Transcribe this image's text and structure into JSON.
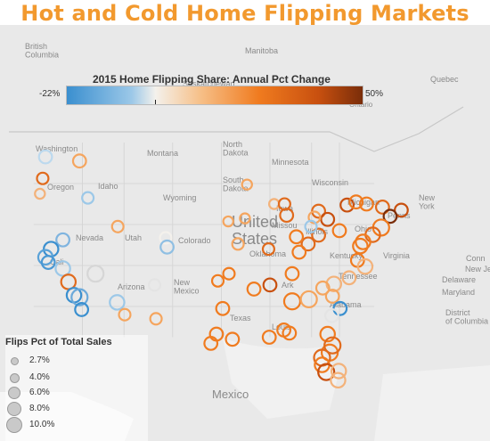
{
  "title": "Hot and Cold Home Flipping Markets",
  "legend": {
    "title": "2015 Home Flipping Share: Annual Pct Change",
    "min_label": "-22%",
    "max_label": "50%",
    "colors": [
      "#3a8fcf",
      "#9cc8e8",
      "#f4f1ec",
      "#f6c089",
      "#f07b1f",
      "#c8500f",
      "#7a2d0a"
    ]
  },
  "size_legend": {
    "title": "Flips Pct of Total Sales",
    "items": [
      "2.7%",
      "4.0%",
      "6.0%",
      "8.0%",
      "10.0%"
    ]
  },
  "map_labels": {
    "british_columbia": "British\nColumbia",
    "manitoba": "Manitoba",
    "saskatchewan": "Saskatchewan",
    "quebec": "Quebec",
    "ontario": "Ontario",
    "washington": "Washington",
    "montana": "Montana",
    "north_dakota": "North\nDakota",
    "minnesota": "Minnesota",
    "oregon": "Oregon",
    "idaho": "Idaho",
    "south_dakota": "South\nDakota",
    "wisconsin": "Wisconsin",
    "new_york": "New\nYork",
    "wyoming": "Wyoming",
    "iowa": "Iowa",
    "michigan": "Michigan",
    "united_states": "United\nStates",
    "nevada": "Nevada",
    "utah": "Utah",
    "colorado": "Colorado",
    "illinois": "Illinois",
    "ohio": "Ohio",
    "pennsylvania": "Penns",
    "missouri": "Missou",
    "kentucky": "Kentucky",
    "virginia": "Virginia",
    "oklahoma": "Oklahoma",
    "arizona": "Arizona",
    "new_mexico": "New\nMexico",
    "arkansas": "Ark",
    "tennessee": "Tennessee",
    "alabama": "Alabama",
    "texas": "Texas",
    "louisiana": "Louis",
    "connecticut": "Conn",
    "new_jersey": "New Je",
    "delaware": "Delaware",
    "maryland": "Maryland",
    "district_of_columbia": "District\nof Columbia",
    "mexico": "Mexico",
    "california": "Cali"
  },
  "markets": [
    {
      "lat": 47.6,
      "lon": -122.3,
      "size": 6.0,
      "color": "#bcd9ee"
    },
    {
      "lat": 47.2,
      "lon": -117.4,
      "size": 6.0,
      "color": "#f5a55e"
    },
    {
      "lat": 45.5,
      "lon": -122.7,
      "size": 5.0,
      "color": "#e06a1c"
    },
    {
      "lat": 44.0,
      "lon": -123.1,
      "size": 4.0,
      "color": "#f3b27a"
    },
    {
      "lat": 43.6,
      "lon": -116.2,
      "size": 5.0,
      "color": "#9cc8e8"
    },
    {
      "lat": 40.8,
      "lon": -111.9,
      "size": 5.0,
      "color": "#f5a55e"
    },
    {
      "lat": 39.7,
      "lon": -105.0,
      "size": 5.0,
      "color": "#f4f1ec"
    },
    {
      "lat": 38.8,
      "lon": -104.8,
      "size": 6.0,
      "color": "#8fbfe3"
    },
    {
      "lat": 39.5,
      "lon": -119.8,
      "size": 6.0,
      "color": "#7fb4df"
    },
    {
      "lat": 38.6,
      "lon": -121.5,
      "size": 7.0,
      "color": "#3a8fcf"
    },
    {
      "lat": 37.8,
      "lon": -122.3,
      "size": 7.0,
      "color": "#5aa2d8"
    },
    {
      "lat": 37.3,
      "lon": -121.9,
      "size": 6.0,
      "color": "#4a98d3"
    },
    {
      "lat": 36.7,
      "lon": -119.8,
      "size": 7.0,
      "color": "#9cc8e8"
    },
    {
      "lat": 35.4,
      "lon": -119.0,
      "size": 7.0,
      "color": "#e06a1c"
    },
    {
      "lat": 36.2,
      "lon": -115.1,
      "size": 8.0,
      "color": "#d6d6d6"
    },
    {
      "lat": 34.1,
      "lon": -118.2,
      "size": 7.0,
      "color": "#3a8fcf"
    },
    {
      "lat": 33.9,
      "lon": -117.4,
      "size": 8.0,
      "color": "#6ba9da"
    },
    {
      "lat": 32.7,
      "lon": -117.1,
      "size": 6.0,
      "color": "#3a8fcf"
    },
    {
      "lat": 33.4,
      "lon": -112.0,
      "size": 7.0,
      "color": "#9cc8e8"
    },
    {
      "lat": 32.2,
      "lon": -110.9,
      "size": 5.0,
      "color": "#f5a55e"
    },
    {
      "lat": 35.1,
      "lon": -106.6,
      "size": 5.0,
      "color": "#e4e4e4"
    },
    {
      "lat": 41.3,
      "lon": -96.0,
      "size": 4.0,
      "color": "#f5a55e"
    },
    {
      "lat": 41.6,
      "lon": -93.6,
      "size": 4.0,
      "color": "#f5a55e"
    },
    {
      "lat": 39.1,
      "lon": -94.6,
      "size": 5.0,
      "color": "#f5a55e"
    },
    {
      "lat": 38.6,
      "lon": -90.2,
      "size": 5.0,
      "color": "#e06a1c"
    },
    {
      "lat": 44.9,
      "lon": -93.3,
      "size": 4.0,
      "color": "#f5a55e"
    },
    {
      "lat": 43.0,
      "lon": -89.4,
      "size": 4.0,
      "color": "#f3b27a"
    },
    {
      "lat": 43.0,
      "lon": -87.9,
      "size": 5.0,
      "color": "#e06a1c"
    },
    {
      "lat": 41.9,
      "lon": -87.6,
      "size": 6.0,
      "color": "#e06a1c"
    },
    {
      "lat": 42.3,
      "lon": -83.0,
      "size": 6.0,
      "color": "#e06a1c"
    },
    {
      "lat": 41.5,
      "lon": -81.7,
      "size": 6.0,
      "color": "#c8500f"
    },
    {
      "lat": 39.96,
      "lon": -83.0,
      "size": 6.0,
      "color": "#e06a1c"
    },
    {
      "lat": 39.1,
      "lon": -84.5,
      "size": 6.0,
      "color": "#e06a1c"
    },
    {
      "lat": 39.8,
      "lon": -86.2,
      "size": 6.0,
      "color": "#f07b1f"
    },
    {
      "lat": 38.3,
      "lon": -85.8,
      "size": 6.0,
      "color": "#f07b1f"
    },
    {
      "lat": 40.4,
      "lon": -80.0,
      "size": 6.0,
      "color": "#f07b1f"
    },
    {
      "lat": 42.9,
      "lon": -78.9,
      "size": 6.0,
      "color": "#c8500f"
    },
    {
      "lat": 42.7,
      "lon": -73.8,
      "size": 6.0,
      "color": "#e06a1c"
    },
    {
      "lat": 42.4,
      "lon": -71.1,
      "size": 6.0,
      "color": "#c8500f"
    },
    {
      "lat": 41.8,
      "lon": -72.7,
      "size": 6.0,
      "color": "#7a2d0a"
    },
    {
      "lat": 40.7,
      "lon": -74.0,
      "size": 8.0,
      "color": "#f07b1f"
    },
    {
      "lat": 40.0,
      "lon": -75.2,
      "size": 7.0,
      "color": "#e06a1c"
    },
    {
      "lat": 39.3,
      "lon": -76.6,
      "size": 7.0,
      "color": "#f07b1f"
    },
    {
      "lat": 38.9,
      "lon": -77.0,
      "size": 7.0,
      "color": "#f07b1f"
    },
    {
      "lat": 37.5,
      "lon": -77.4,
      "size": 6.0,
      "color": "#f07b1f"
    },
    {
      "lat": 36.9,
      "lon": -76.3,
      "size": 7.0,
      "color": "#f3b27a"
    },
    {
      "lat": 36.2,
      "lon": -86.8,
      "size": 6.0,
      "color": "#f07b1f"
    },
    {
      "lat": 35.1,
      "lon": -90.0,
      "size": 6.0,
      "color": "#c8500f"
    },
    {
      "lat": 35.5,
      "lon": -97.5,
      "size": 5.0,
      "color": "#f07b1f"
    },
    {
      "lat": 36.2,
      "lon": -95.9,
      "size": 5.0,
      "color": "#f07b1f"
    },
    {
      "lat": 34.7,
      "lon": -92.3,
      "size": 6.0,
      "color": "#f07b1f"
    },
    {
      "lat": 32.8,
      "lon": -96.8,
      "size": 6.0,
      "color": "#f07b1f"
    },
    {
      "lat": 29.8,
      "lon": -95.4,
      "size": 6.0,
      "color": "#f07b1f"
    },
    {
      "lat": 30.3,
      "lon": -97.7,
      "size": 6.0,
      "color": "#f07b1f"
    },
    {
      "lat": 29.4,
      "lon": -98.5,
      "size": 6.0,
      "color": "#f07b1f"
    },
    {
      "lat": 30.0,
      "lon": -90.1,
      "size": 6.0,
      "color": "#f07b1f"
    },
    {
      "lat": 33.5,
      "lon": -86.8,
      "size": 8.0,
      "color": "#f07b1f"
    },
    {
      "lat": 33.7,
      "lon": -84.4,
      "size": 8.0,
      "color": "#f5a55e"
    },
    {
      "lat": 35.2,
      "lon": -80.8,
      "size": 7.0,
      "color": "#f3b27a"
    },
    {
      "lat": 35.8,
      "lon": -78.6,
      "size": 6.0,
      "color": "#f3b27a"
    },
    {
      "lat": 34.0,
      "lon": -81.0,
      "size": 6.0,
      "color": "#f5a55e"
    },
    {
      "lat": 32.8,
      "lon": -79.9,
      "size": 6.0,
      "color": "#3a8fcf"
    },
    {
      "lat": 34.8,
      "lon": -82.4,
      "size": 6.0,
      "color": "#f5a55e"
    },
    {
      "lat": 32.1,
      "lon": -81.1,
      "size": 6.0,
      "color": "#e4e4e4"
    },
    {
      "lat": 30.3,
      "lon": -81.7,
      "size": 7.0,
      "color": "#f07b1f"
    },
    {
      "lat": 28.5,
      "lon": -81.4,
      "size": 8.0,
      "color": "#f07b1f"
    },
    {
      "lat": 28.0,
      "lon": -82.5,
      "size": 8.0,
      "color": "#e06a1c"
    },
    {
      "lat": 27.3,
      "lon": -82.5,
      "size": 7.0,
      "color": "#f07b1f"
    },
    {
      "lat": 26.6,
      "lon": -81.9,
      "size": 8.0,
      "color": "#c8500f"
    },
    {
      "lat": 26.7,
      "lon": -80.1,
      "size": 7.0,
      "color": "#f3b27a"
    },
    {
      "lat": 25.8,
      "lon": -80.2,
      "size": 7.0,
      "color": "#f3b27a"
    },
    {
      "lat": 29.2,
      "lon": -81.0,
      "size": 8.0,
      "color": "#e06a1c"
    },
    {
      "lat": 30.4,
      "lon": -87.2,
      "size": 6.0,
      "color": "#f07b1f"
    },
    {
      "lat": 30.7,
      "lon": -88.0,
      "size": 6.0,
      "color": "#f07b1f"
    },
    {
      "lat": 31.8,
      "lon": -106.4,
      "size": 5.0,
      "color": "#f5a55e"
    },
    {
      "lat": 43.0,
      "lon": -76.1,
      "size": 6.0,
      "color": "#f07b1f"
    },
    {
      "lat": 43.2,
      "lon": -77.6,
      "size": 6.0,
      "color": "#f07b1f"
    },
    {
      "lat": 41.7,
      "lon": -83.6,
      "size": 5.0,
      "color": "#f5a55e"
    },
    {
      "lat": 40.8,
      "lon": -84.1,
      "size": 5.0,
      "color": "#9cc8e8"
    }
  ]
}
